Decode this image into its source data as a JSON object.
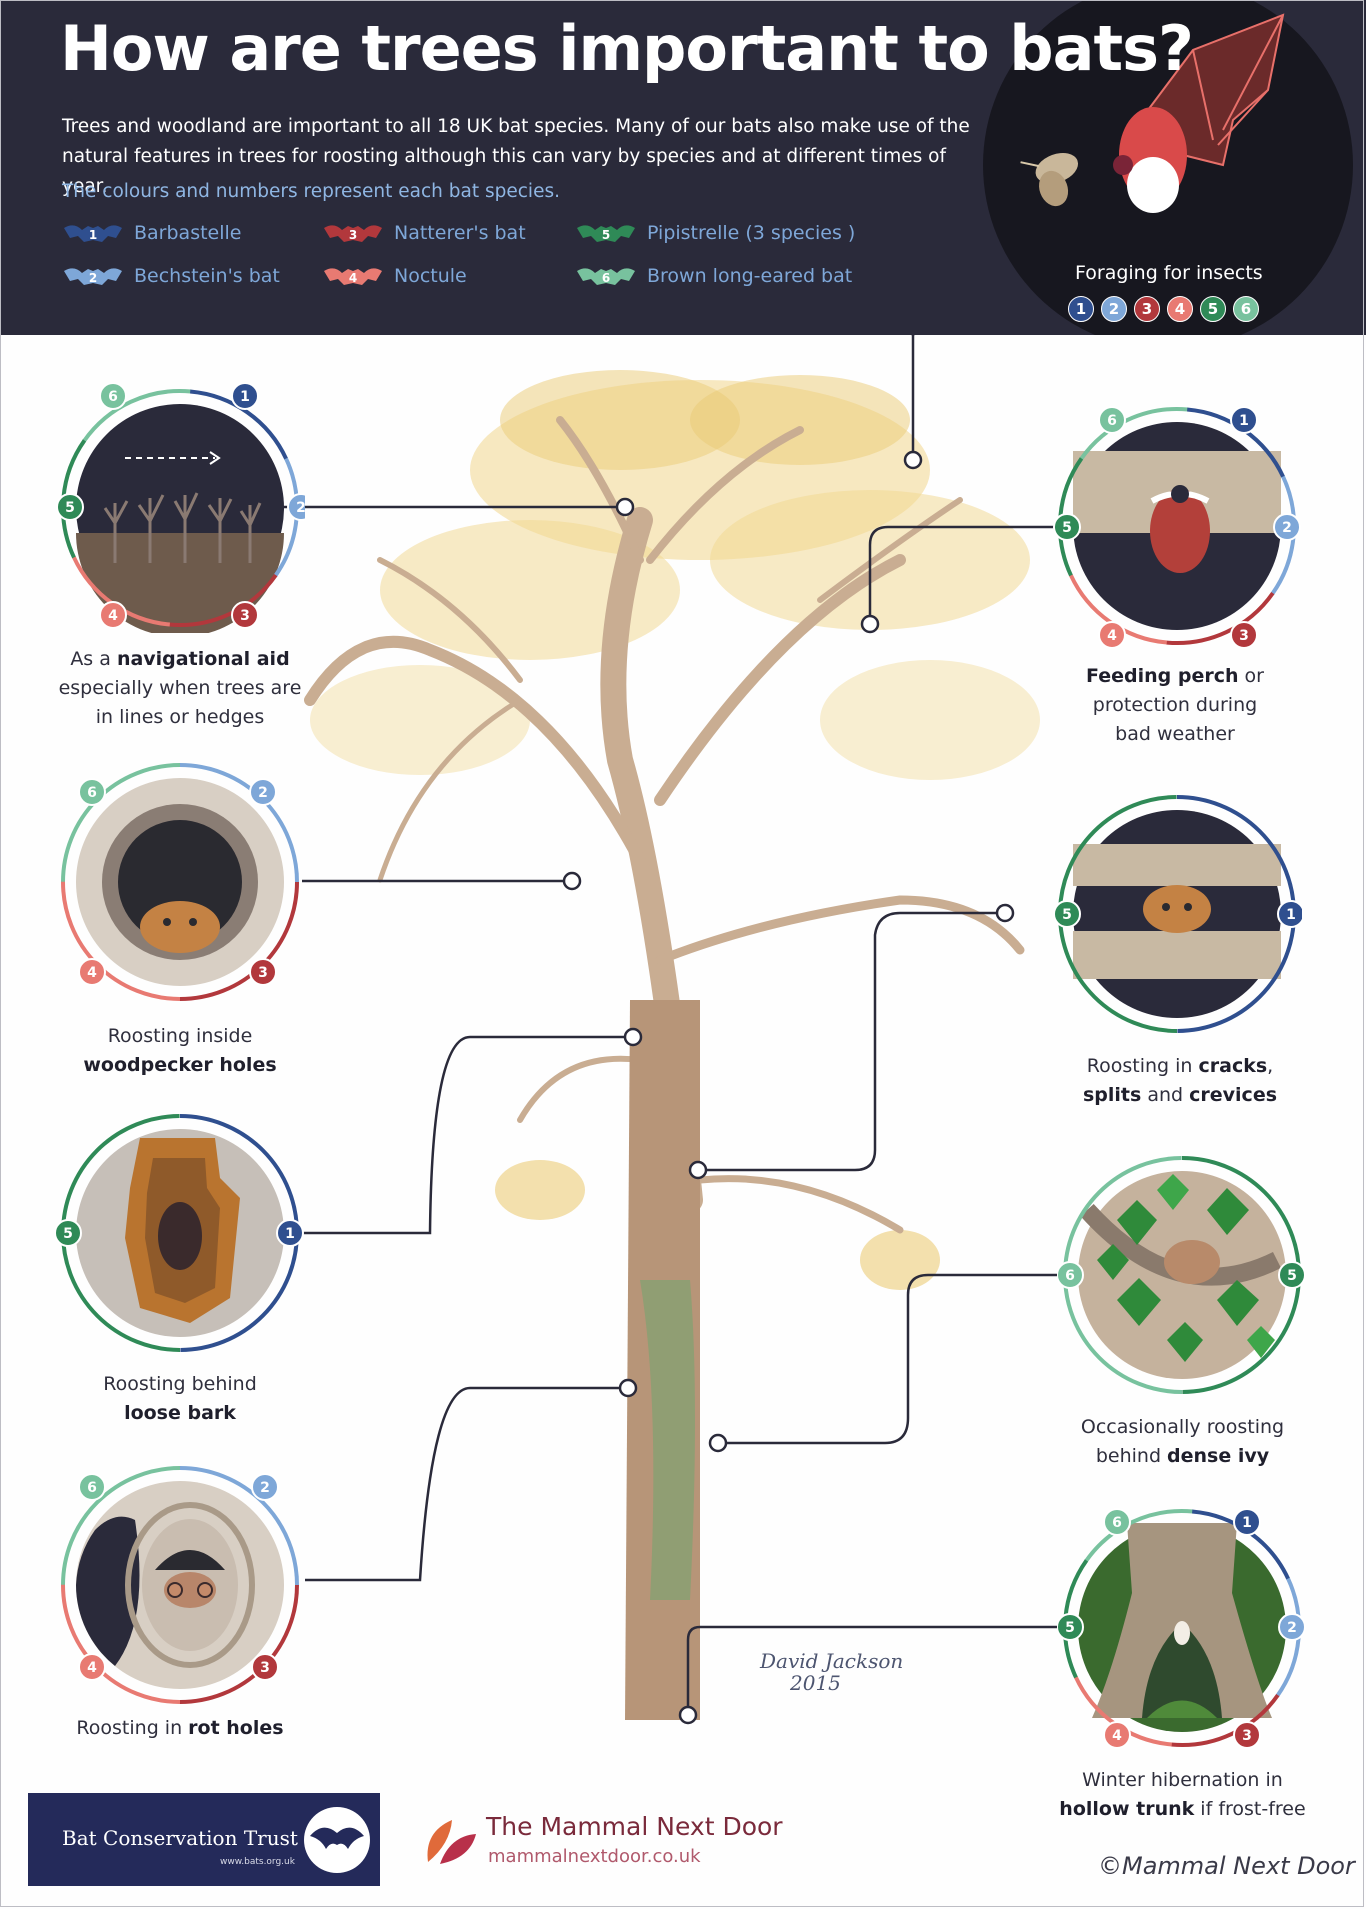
{
  "title": "How are trees important to bats?",
  "intro": "Trees and woodland are important to all 18 UK bat species. Many of our bats also make use of the natural features in trees for roosting although this can vary by species and at different times of year.",
  "colours_note": "The colours and numbers represent each bat species.",
  "species": [
    {
      "num": "1",
      "name": "Barbastelle",
      "color": "#2f4f8f"
    },
    {
      "num": "2",
      "name": "Bechstein's bat",
      "color": "#7ea7d8"
    },
    {
      "num": "3",
      "name": "Natterer's bat",
      "color": "#b2383c"
    },
    {
      "num": "4",
      "name": "Noctule",
      "color": "#e87a72"
    },
    {
      "num": "5",
      "name": "Pipistrelle (3 species )",
      "color": "#2f8a57"
    },
    {
      "num": "6",
      "name": "Brown long-eared bat",
      "color": "#78c29e"
    }
  ],
  "foraging": {
    "label": "Foraging for insects",
    "nums": [
      "1",
      "2",
      "3",
      "4",
      "5",
      "6"
    ]
  },
  "features": [
    {
      "pre": "As a ",
      "bold": "navigational aid",
      "post": "",
      "line2": "especially when trees are",
      "line3": "in lines or hedges",
      "nums": [
        "6",
        "1",
        "2",
        "3",
        "4",
        "5"
      ]
    },
    {
      "pre": "",
      "bold": "Feeding perch",
      "post": " or",
      "line2": "protection during",
      "line3": "bad weather",
      "nums": [
        "6",
        "1",
        "2",
        "3",
        "4",
        "5"
      ]
    },
    {
      "line1": "Roosting inside",
      "bold": "woodpecker holes",
      "nums": [
        "6",
        "2",
        "3",
        "4"
      ]
    },
    {
      "line1_pre": "Roosting in ",
      "bold1": "cracks",
      "line1_post": ",",
      "bold2": "splits",
      "mid": " and ",
      "bold3": "crevices",
      "nums": [
        "5",
        "1"
      ]
    },
    {
      "line1": "Roosting behind",
      "bold": "loose bark",
      "nums": [
        "5",
        "1"
      ]
    },
    {
      "line1": "Occasionally roosting",
      "pre2": "behind ",
      "bold": "dense ivy",
      "nums": [
        "6",
        "5"
      ]
    },
    {
      "pre": "Roosting in ",
      "bold": "rot holes",
      "nums": [
        "6",
        "2",
        "3",
        "4"
      ]
    },
    {
      "line1": "Winter hibernation in",
      "bold": "hollow trunk",
      "post": " if frost-free",
      "nums": [
        "6",
        "1",
        "2",
        "3",
        "4",
        "5"
      ]
    }
  ],
  "signature": {
    "name": "David Jackson",
    "year": "2015"
  },
  "footer": {
    "bct_name": "Bat Conservation Trust",
    "bct_url": "www.bats.org.uk",
    "mnd_name": "The Mammal Next Door",
    "mnd_url": "mammalnextdoor.co.uk",
    "copyright": "©Mammal Next Door"
  }
}
